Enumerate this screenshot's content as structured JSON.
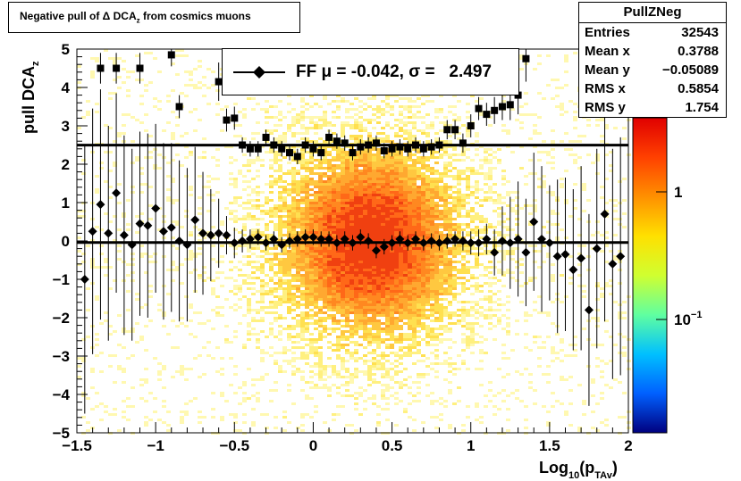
{
  "title": {
    "main": "Negative pull of Δ DCA",
    "sub": "z",
    "tail": " from cosmics muons"
  },
  "stats": {
    "name": "PullZNeg",
    "rows": [
      {
        "label": "Entries",
        "value": "32543"
      },
      {
        "label": "Mean x",
        "value": "0.3788"
      },
      {
        "label": "Mean y",
        "value": "−0.05089"
      },
      {
        "label": "RMS x",
        "value": "0.5854"
      },
      {
        "label": "RMS y",
        "value": "1.754"
      }
    ]
  },
  "legend": {
    "text": "FF μ = -0.042, σ =   2.497"
  },
  "axes": {
    "ylabel": "pull DCA",
    "ylabel_sub": "z",
    "xlabel": "Log",
    "xlabel_sub": "10",
    "xlabel_tail": "(p",
    "xlabel_sub2": "TAv",
    "xlabel_end": ")"
  },
  "colorbar": {
    "labels": [
      {
        "text": "1",
        "exp": ""
      },
      {
        "text": "10",
        "exp": "−1"
      }
    ],
    "colors": [
      "#00007f",
      "#0060ff",
      "#00c0ff",
      "#60ffa0",
      "#d0ff30",
      "#ffe000",
      "#ff9000",
      "#ff4000",
      "#e00000"
    ]
  },
  "chart_data": {
    "type": "scatter",
    "xlim": [
      -1.5,
      2
    ],
    "ylim": [
      -5,
      5
    ],
    "x_ticks": [
      "−1.5",
      "−1",
      "−0.5",
      "0",
      "0.5",
      "1",
      "1.5",
      "2"
    ],
    "y_ticks": [
      "−5",
      "−4",
      "−3",
      "−2",
      "−1",
      "0",
      "1",
      "2",
      "3",
      "4",
      "5"
    ],
    "hlines": [
      2.497,
      -0.042
    ],
    "series": [
      {
        "name": "mean",
        "marker": "diamond",
        "x": [
          -1.45,
          -1.4,
          -1.35,
          -1.3,
          -1.25,
          -1.2,
          -1.15,
          -1.1,
          -1.05,
          -1.0,
          -0.95,
          -0.9,
          -0.85,
          -0.8,
          -0.75,
          -0.7,
          -0.65,
          -0.6,
          -0.55,
          -0.5,
          -0.45,
          -0.4,
          -0.35,
          -0.3,
          -0.25,
          -0.2,
          -0.15,
          -0.1,
          -0.05,
          0.0,
          0.05,
          0.1,
          0.15,
          0.2,
          0.25,
          0.3,
          0.35,
          0.4,
          0.45,
          0.5,
          0.55,
          0.6,
          0.65,
          0.7,
          0.75,
          0.8,
          0.85,
          0.9,
          0.95,
          1.0,
          1.05,
          1.1,
          1.15,
          1.2,
          1.25,
          1.3,
          1.35,
          1.4,
          1.45,
          1.5,
          1.55,
          1.6,
          1.65,
          1.7,
          1.75,
          1.8,
          1.85,
          1.9,
          1.95
        ],
        "y": [
          -1.0,
          0.25,
          0.95,
          0.2,
          1.25,
          0.15,
          -0.1,
          0.45,
          0.4,
          0.85,
          0.25,
          0.35,
          0.0,
          -0.1,
          0.55,
          0.2,
          0.15,
          0.2,
          0.15,
          -0.05,
          0.0,
          0.05,
          0.1,
          -0.05,
          0.05,
          -0.1,
          0.0,
          0.05,
          0.1,
          0.1,
          0.05,
          0.05,
          -0.05,
          0.05,
          -0.05,
          0.1,
          0.0,
          -0.25,
          -0.15,
          -0.05,
          0.05,
          -0.05,
          0.05,
          -0.05,
          0.0,
          -0.05,
          0.0,
          0.05,
          0.0,
          -0.05,
          -0.05,
          0.05,
          -0.3,
          0.0,
          -0.05,
          0.05,
          -0.3,
          0.5,
          0.05,
          -0.05,
          -0.4,
          -0.35,
          -0.75,
          -0.45,
          -1.8,
          -0.2,
          0.7,
          -0.6,
          -0.4
        ],
        "err": [
          3.5,
          3.2,
          3.0,
          2.8,
          2.6,
          2.6,
          2.5,
          2.4,
          2.4,
          2.2,
          2.3,
          2.2,
          2.1,
          2.0,
          1.9,
          1.6,
          1.2,
          0.9,
          0.5,
          0.4,
          0.3,
          0.25,
          0.2,
          0.2,
          0.2,
          0.2,
          0.2,
          0.2,
          0.2,
          0.2,
          0.2,
          0.2,
          0.2,
          0.2,
          0.2,
          0.2,
          0.2,
          0.2,
          0.2,
          0.2,
          0.2,
          0.2,
          0.2,
          0.2,
          0.2,
          0.2,
          0.2,
          0.2,
          0.25,
          0.3,
          0.35,
          0.4,
          0.6,
          0.9,
          1.2,
          1.5,
          1.4,
          1.8,
          1.9,
          1.5,
          2.0,
          2.0,
          2.1,
          2.4,
          2.5,
          2.6,
          2.8,
          3.0,
          3.1
        ]
      },
      {
        "name": "rms",
        "marker": "square",
        "x": [
          -1.45,
          -1.4,
          -1.35,
          -1.3,
          -1.25,
          -1.2,
          -1.15,
          -1.1,
          -1.05,
          -1.0,
          -0.95,
          -0.9,
          -0.85,
          -0.8,
          -0.75,
          -0.7,
          -0.65,
          -0.6,
          -0.55,
          -0.5,
          -0.45,
          -0.4,
          -0.35,
          -0.3,
          -0.25,
          -0.2,
          -0.15,
          -0.1,
          -0.05,
          0.0,
          0.05,
          0.1,
          0.15,
          0.2,
          0.25,
          0.3,
          0.35,
          0.4,
          0.45,
          0.5,
          0.55,
          0.6,
          0.65,
          0.7,
          0.75,
          0.8,
          0.85,
          0.9,
          0.95,
          1.0,
          1.05,
          1.1,
          1.15,
          1.2,
          1.25,
          1.3,
          1.35
        ],
        "y": [
          null,
          null,
          4.5,
          null,
          4.5,
          null,
          null,
          4.5,
          null,
          null,
          null,
          4.85,
          3.5,
          null,
          null,
          null,
          null,
          4.15,
          3.15,
          3.2,
          2.5,
          2.4,
          2.4,
          2.7,
          2.5,
          2.4,
          2.3,
          2.2,
          2.5,
          2.4,
          2.3,
          2.7,
          2.6,
          2.55,
          2.3,
          2.45,
          2.5,
          2.55,
          2.35,
          2.4,
          2.45,
          2.4,
          2.5,
          2.4,
          2.45,
          2.5,
          2.9,
          2.9,
          2.55,
          3.0,
          3.45,
          3.3,
          3.4,
          3.5,
          3.55,
          3.8,
          4.75
        ],
        "err": [
          0,
          0,
          0.4,
          0,
          0.4,
          0,
          0,
          0.4,
          0,
          0,
          0,
          0.3,
          0.3,
          0,
          0,
          0,
          0,
          0.5,
          0.3,
          0.3,
          0.2,
          0.2,
          0.2,
          0.2,
          0.2,
          0.2,
          0.2,
          0.2,
          0.2,
          0.2,
          0.2,
          0.2,
          0.2,
          0.2,
          0.2,
          0.2,
          0.2,
          0.2,
          0.2,
          0.2,
          0.2,
          0.2,
          0.2,
          0.2,
          0.2,
          0.2,
          0.25,
          0.25,
          0.25,
          0.3,
          0.3,
          0.3,
          0.35,
          0.35,
          0.4,
          0.5,
          0.6
        ]
      }
    ]
  }
}
